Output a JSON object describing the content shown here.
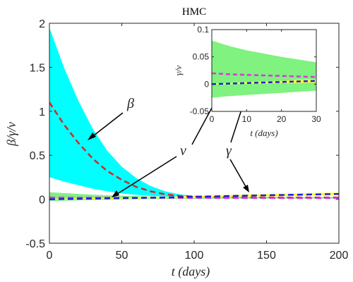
{
  "chart_data": [
    {
      "type": "area",
      "title": "HMC",
      "xlabel": "t (days)",
      "ylabel": "β/γ/ν",
      "xlim": [
        0,
        200
      ],
      "ylim": [
        -0.5,
        2
      ],
      "xticks": [
        "0",
        "50",
        "100",
        "150",
        "200"
      ],
      "yticks": [
        "-0.5",
        "0",
        "0.5",
        "1",
        "1.5",
        "2"
      ],
      "grid": false,
      "annotations": [
        "β",
        "ν",
        "γ"
      ],
      "series": [
        {
          "name": "β",
          "style": "dashed",
          "color": "#d62728",
          "band_color": "#00ffff",
          "x": [
            0,
            10,
            20,
            30,
            40,
            50,
            60,
            70,
            80,
            90,
            100,
            120,
            140,
            160,
            180,
            200
          ],
          "values": [
            1.1,
            0.85,
            0.64,
            0.46,
            0.32,
            0.22,
            0.14,
            0.09,
            0.055,
            0.038,
            0.03,
            0.022,
            0.02,
            0.02,
            0.02,
            0.02
          ],
          "lower": [
            0.25,
            0.2,
            0.16,
            0.12,
            0.09,
            0.065,
            0.05,
            0.038,
            0.03,
            0.025,
            0.022,
            0.02,
            0.018,
            0.018,
            0.018,
            0.018
          ],
          "upper": [
            1.95,
            1.5,
            1.12,
            0.8,
            0.55,
            0.37,
            0.24,
            0.15,
            0.09,
            0.055,
            0.04,
            0.028,
            0.025,
            0.024,
            0.024,
            0.024
          ]
        },
        {
          "name": "ν",
          "style": "dashed",
          "color": "#d63bd6",
          "band_color": "#7ff27f",
          "x": [
            0,
            20,
            40,
            60,
            80,
            100,
            120,
            140,
            160,
            180,
            200
          ],
          "values": [
            0.02,
            0.019,
            0.018,
            0.017,
            0.016,
            0.015,
            0.014,
            0.014,
            0.013,
            0.013,
            0.013
          ],
          "lower": [
            -0.02,
            -0.012,
            -0.005,
            0,
            0.004,
            0.006,
            0.007,
            0.008,
            0.008,
            0.008,
            0.008
          ],
          "upper": [
            0.08,
            0.06,
            0.045,
            0.035,
            0.028,
            0.024,
            0.022,
            0.02,
            0.019,
            0.019,
            0.019
          ]
        },
        {
          "name": "γ",
          "style": "dashed",
          "color": "#1f1fd6",
          "band_color": "#ffff3f",
          "x": [
            0,
            20,
            40,
            60,
            80,
            100,
            120,
            140,
            160,
            180,
            200
          ],
          "values": [
            0.0,
            0.005,
            0.01,
            0.015,
            0.02,
            0.028,
            0.035,
            0.042,
            0.048,
            0.054,
            0.06
          ],
          "lower": [
            -0.005,
            0.0,
            0.004,
            0.008,
            0.012,
            0.018,
            0.024,
            0.03,
            0.035,
            0.04,
            0.045
          ],
          "upper": [
            0.005,
            0.01,
            0.016,
            0.022,
            0.03,
            0.04,
            0.048,
            0.056,
            0.063,
            0.07,
            0.077
          ]
        }
      ]
    },
    {
      "type": "area",
      "title": "",
      "xlabel": "t (days)",
      "ylabel": "γ/ν",
      "xlim": [
        0,
        30
      ],
      "ylim": [
        -0.05,
        0.1
      ],
      "xticks": [
        "0",
        "10",
        "20",
        "30"
      ],
      "yticks": [
        "-0.05",
        "0",
        "0.05",
        "0.1"
      ],
      "grid": false,
      "series": [
        {
          "name": "ν",
          "style": "dashed",
          "color": "#d63bd6",
          "band_color": "#7ff27f",
          "x": [
            0,
            5,
            10,
            15,
            20,
            25,
            30
          ],
          "values": [
            0.02,
            0.018,
            0.017,
            0.016,
            0.015,
            0.014,
            0.013
          ],
          "lower": [
            -0.025,
            -0.022,
            -0.02,
            -0.018,
            -0.016,
            -0.014,
            -0.012
          ],
          "upper": [
            0.08,
            0.07,
            0.062,
            0.056,
            0.05,
            0.045,
            0.04
          ]
        },
        {
          "name": "γ",
          "style": "dashed",
          "color": "#1f1fd6",
          "band_color": "#ffff3f",
          "x": [
            0,
            5,
            10,
            15,
            20,
            25,
            30
          ],
          "values": [
            0.0,
            0.001,
            0.002,
            0.003,
            0.004,
            0.005,
            0.006
          ],
          "lower": [
            -0.001,
            0.0,
            0.0005,
            0.001,
            0.002,
            0.002,
            0.003
          ],
          "upper": [
            0.001,
            0.002,
            0.004,
            0.005,
            0.006,
            0.008,
            0.009
          ]
        }
      ]
    }
  ]
}
